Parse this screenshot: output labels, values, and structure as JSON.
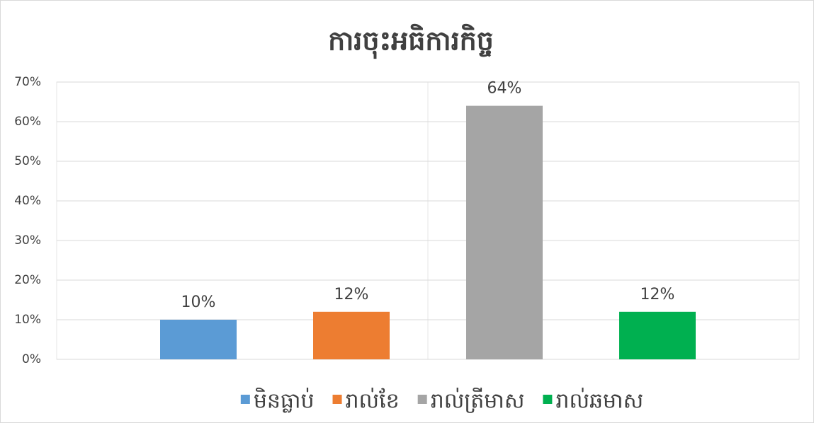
{
  "chart_data": {
    "type": "bar",
    "title": "ការចុះអធិការកិច្ច",
    "categories": [
      "មិនធ្លាប់",
      "រាល់ខែ",
      "រាល់ត្រីមាស",
      "រាល់ឆមាស"
    ],
    "values": [
      10,
      12,
      64,
      12
    ],
    "value_labels": [
      "10%",
      "12%",
      "64%",
      "12%"
    ],
    "colors": [
      "#5b9bd5",
      "#ed7d31",
      "#a5a5a5",
      "#00b050"
    ],
    "ylim": [
      0,
      70
    ],
    "yticks": [
      {
        "value": 0,
        "label": "0%"
      },
      {
        "value": 10,
        "label": "10%"
      },
      {
        "value": 20,
        "label": "20%"
      },
      {
        "value": 30,
        "label": "30%"
      },
      {
        "value": 40,
        "label": "40%"
      },
      {
        "value": 50,
        "label": "50%"
      },
      {
        "value": 60,
        "label": "60%"
      },
      {
        "value": 70,
        "label": "70%"
      }
    ],
    "grid": true,
    "legend": "bottom"
  }
}
